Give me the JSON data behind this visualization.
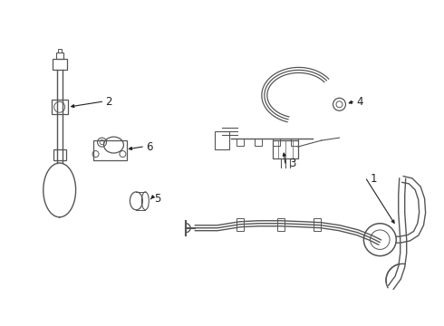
{
  "background_color": "#ffffff",
  "fig_width": 4.9,
  "fig_height": 3.6,
  "dpi": 100,
  "cable_color": "#555555",
  "text_color": "#222222",
  "leader_color": "#222222",
  "font_size": 8.5,
  "leader_data": [
    [
      1,
      0.805,
      0.558,
      0.792,
      0.535
    ],
    [
      2,
      0.17,
      0.73,
      0.108,
      0.724
    ],
    [
      3,
      0.56,
      0.49,
      0.508,
      0.484
    ],
    [
      4,
      0.695,
      0.62,
      0.65,
      0.613
    ],
    [
      5,
      0.265,
      0.39,
      0.218,
      0.385
    ],
    [
      6,
      0.27,
      0.628,
      0.21,
      0.622
    ]
  ]
}
